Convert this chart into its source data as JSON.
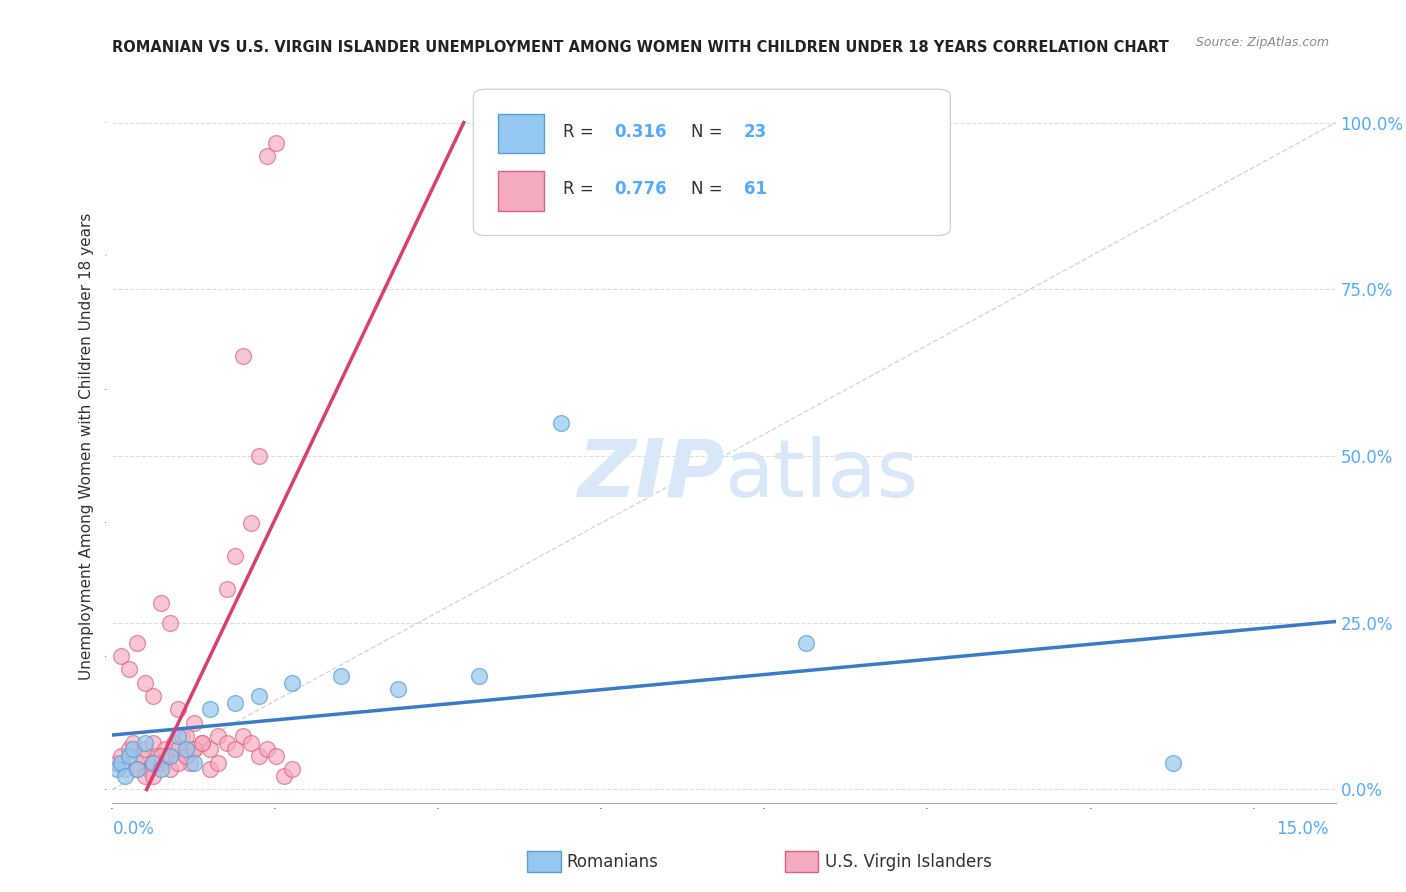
{
  "title": "ROMANIAN VS U.S. VIRGIN ISLANDER UNEMPLOYMENT AMONG WOMEN WITH CHILDREN UNDER 18 YEARS CORRELATION CHART",
  "source": "Source: ZipAtlas.com",
  "ylabel": "Unemployment Among Women with Children Under 18 years",
  "xlim": [
    0.0,
    0.15
  ],
  "ylim": [
    -0.02,
    1.05
  ],
  "r_romanian": 0.316,
  "n_romanian": 23,
  "r_usvi": 0.776,
  "n_usvi": 61,
  "color_romanian": "#94C8F0",
  "color_romanian_edge": "#5A9FD4",
  "color_usvi": "#F4AABF",
  "color_usvi_edge": "#E06080",
  "color_romanian_line": "#3A7BC8",
  "color_usvi_line": "#D84070",
  "color_dashed": "#BBBBBB",
  "color_grid": "#DDDDDD",
  "legend_label_romanian": "Romanians",
  "legend_label_usvi": "U.S. Virgin Islanders",
  "axis_color": "#55AAFF",
  "watermark_color": "#D8E8F8",
  "ytick_vals": [
    0.0,
    0.25,
    0.5,
    0.75,
    1.0
  ],
  "ytick_labels": [
    "0.0%",
    "25.0%",
    "50.0%",
    "75.0%",
    "100.0%"
  ],
  "romanian_x": [
    0.0005,
    0.001,
    0.0015,
    0.002,
    0.0025,
    0.003,
    0.004,
    0.005,
    0.006,
    0.007,
    0.008,
    0.009,
    0.01,
    0.012,
    0.015,
    0.018,
    0.022,
    0.028,
    0.035,
    0.045,
    0.055,
    0.085,
    0.13
  ],
  "romanian_y": [
    0.03,
    0.04,
    0.02,
    0.05,
    0.06,
    0.03,
    0.07,
    0.04,
    0.03,
    0.05,
    0.08,
    0.06,
    0.04,
    0.12,
    0.13,
    0.14,
    0.16,
    0.17,
    0.15,
    0.17,
    0.55,
    0.22,
    0.04
  ],
  "usvi_x": [
    0.0005,
    0.001,
    0.0015,
    0.002,
    0.0025,
    0.003,
    0.0035,
    0.004,
    0.0045,
    0.005,
    0.0055,
    0.006,
    0.0065,
    0.007,
    0.0075,
    0.008,
    0.0085,
    0.009,
    0.0095,
    0.01,
    0.011,
    0.012,
    0.013,
    0.014,
    0.015,
    0.016,
    0.017,
    0.018,
    0.019,
    0.02,
    0.001,
    0.002,
    0.003,
    0.004,
    0.005,
    0.006,
    0.007,
    0.008,
    0.009,
    0.01,
    0.003,
    0.004,
    0.005,
    0.006,
    0.007,
    0.008,
    0.009,
    0.01,
    0.011,
    0.012,
    0.013,
    0.014,
    0.015,
    0.016,
    0.017,
    0.018,
    0.019,
    0.02,
    0.021,
    0.022,
    0.005
  ],
  "usvi_y": [
    0.04,
    0.05,
    0.03,
    0.06,
    0.07,
    0.04,
    0.05,
    0.06,
    0.03,
    0.07,
    0.05,
    0.04,
    0.06,
    0.05,
    0.07,
    0.06,
    0.08,
    0.05,
    0.04,
    0.06,
    0.07,
    0.06,
    0.08,
    0.07,
    0.06,
    0.08,
    0.07,
    0.05,
    0.06,
    0.05,
    0.2,
    0.18,
    0.22,
    0.16,
    0.14,
    0.28,
    0.25,
    0.12,
    0.08,
    0.1,
    0.03,
    0.02,
    0.04,
    0.05,
    0.03,
    0.04,
    0.05,
    0.06,
    0.07,
    0.03,
    0.04,
    0.3,
    0.35,
    0.65,
    0.4,
    0.5,
    0.95,
    0.97,
    0.02,
    0.03,
    0.02
  ]
}
